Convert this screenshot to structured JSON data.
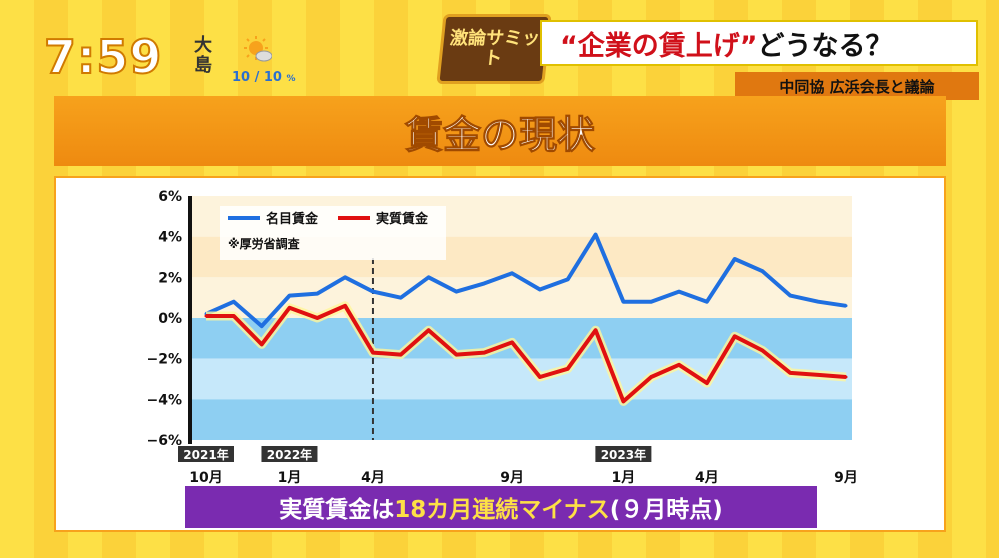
{
  "clock": "7:59",
  "location": "大島",
  "weather": {
    "icon": "sun-cloud-icon",
    "precip": "10 / 10",
    "unit": "%"
  },
  "logo_text": "激論サミット",
  "headline": {
    "quote_text": "“企業の賃上げ”",
    "rest": "どうなる？"
  },
  "subhead": "中同協 広浜会長と議論",
  "section_title": "賃金の現状",
  "caption": {
    "prefix": "実質賃金は",
    "highlight": "18カ月連続マイナス",
    "suffix": "(９月時点)"
  },
  "colors": {
    "nominal": "#1f6fe0",
    "real": "#e01010",
    "accent": "#f7a21c",
    "caption_bg": "#7a2bb0"
  },
  "chart_data": {
    "type": "line",
    "title": "",
    "xlabel": "",
    "ylabel": "",
    "ylim": [
      -6,
      6
    ],
    "yticks": [
      "6%",
      "4%",
      "2%",
      "0%",
      "−2%",
      "−4%",
      "−6%"
    ],
    "legend_placement": "top-left",
    "source_note": "※厚労省調査",
    "x": [
      "2021-10",
      "2021-11",
      "2021-12",
      "2022-01",
      "2022-02",
      "2022-03",
      "2022-04",
      "2022-05",
      "2022-06",
      "2022-07",
      "2022-08",
      "2022-09",
      "2022-10",
      "2022-11",
      "2022-12",
      "2023-01",
      "2023-02",
      "2023-03",
      "2023-04",
      "2023-05",
      "2023-06",
      "2023-07",
      "2023-08",
      "2023-09"
    ],
    "x_tick_labels": [
      {
        "x": "2021-10",
        "label": "10月",
        "year": "2021年"
      },
      {
        "x": "2022-01",
        "label": "1月",
        "year": "2022年"
      },
      {
        "x": "2022-04",
        "label": "4月",
        "year": ""
      },
      {
        "x": "2022-09",
        "label": "9月",
        "year": ""
      },
      {
        "x": "2023-01",
        "label": "1月",
        "year": "2023年"
      },
      {
        "x": "2023-04",
        "label": "4月",
        "year": ""
      },
      {
        "x": "2023-09",
        "label": "9月",
        "year": ""
      }
    ],
    "marker_line_x": "2022-04",
    "series": [
      {
        "name": "名目賃金",
        "values": [
          0.2,
          0.8,
          -0.4,
          1.1,
          1.2,
          2.0,
          1.3,
          1.0,
          2.0,
          1.3,
          1.7,
          2.2,
          1.4,
          1.9,
          4.1,
          0.8,
          0.8,
          1.3,
          0.8,
          2.9,
          2.3,
          1.1,
          0.8,
          0.6
        ]
      },
      {
        "name": "実質賃金",
        "values": [
          0.1,
          0.1,
          -1.3,
          0.5,
          0.0,
          0.6,
          -1.7,
          -1.8,
          -0.6,
          -1.8,
          -1.7,
          -1.2,
          -2.9,
          -2.5,
          -0.6,
          -4.1,
          -2.9,
          -2.3,
          -3.2,
          -0.9,
          -1.6,
          -2.7,
          -2.8,
          -2.9
        ]
      }
    ]
  }
}
